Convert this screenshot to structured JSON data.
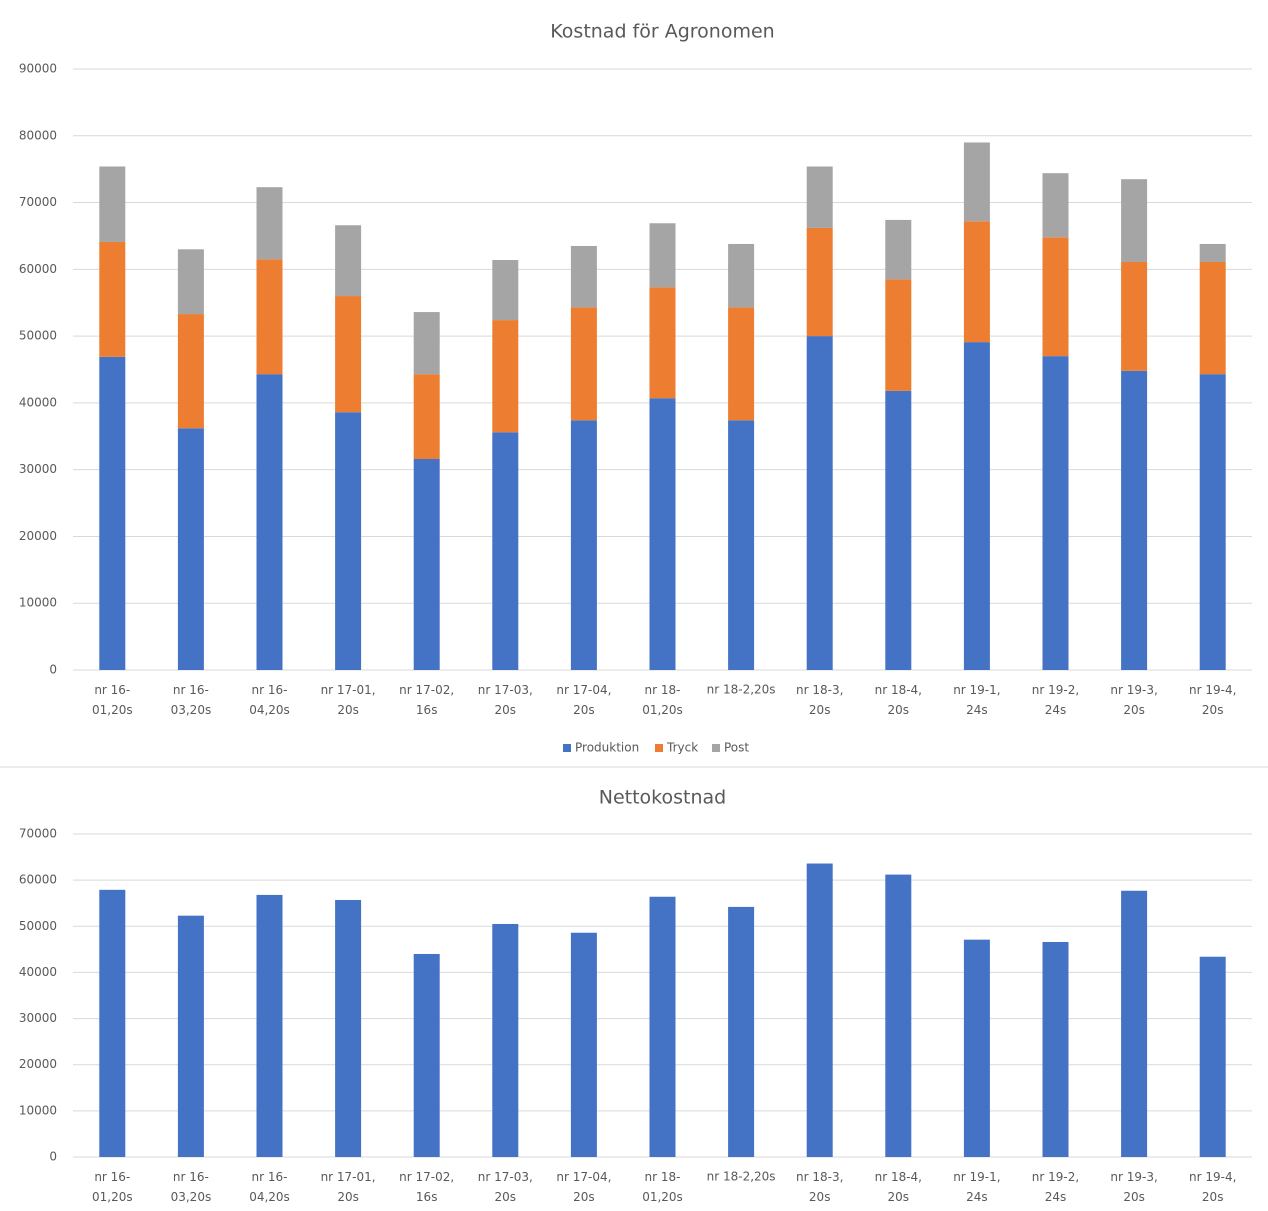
{
  "chart_data": [
    {
      "type": "stacked_bar",
      "title": "Kostnad för Agronomen",
      "categories": [
        "nr 16-\n01,20s",
        "nr 16-\n03,20s",
        "nr 16-\n04,20s",
        "nr 17-01,\n20s",
        "nr 17-02,\n16s",
        "nr 17-03,\n20s",
        "nr 17-04,\n20s",
        "nr 18-\n01,20s",
        "nr 18-2,20s",
        "nr 18-3,\n20s",
        "nr 18-4,\n20s",
        "nr 19-1,\n24s",
        "nr 19-2,\n24s",
        "nr 19-3,\n20s",
        "nr 19-4,\n20s"
      ],
      "series": [
        {
          "name": "Produktion",
          "color": "#4472c4",
          "values": [
            46900,
            36200,
            44300,
            38600,
            31600,
            35600,
            37400,
            40700,
            37400,
            50000,
            41800,
            49100,
            47000,
            44800,
            44300
          ]
        },
        {
          "name": "Tryck",
          "color": "#ed7d31",
          "values": [
            17200,
            17100,
            17200,
            17400,
            12700,
            16800,
            16900,
            16600,
            16900,
            16200,
            16700,
            18100,
            17800,
            16300,
            16800
          ]
        },
        {
          "name": "Post",
          "color": "#a5a5a5",
          "values": [
            11300,
            9700,
            10800,
            10600,
            9300,
            9000,
            9200,
            9600,
            9500,
            9200,
            8900,
            11800,
            9600,
            12400,
            2700
          ]
        }
      ],
      "ylim": [
        0,
        90000
      ],
      "yticks": [
        0,
        10000,
        20000,
        30000,
        40000,
        50000,
        60000,
        70000,
        80000,
        90000
      ],
      "grid": true,
      "legend": "bottom"
    },
    {
      "type": "bar",
      "title": "Nettokostnad",
      "categories": [
        "nr 16-\n01,20s",
        "nr 16-\n03,20s",
        "nr 16-\n04,20s",
        "nr 17-01,\n20s",
        "nr 17-02,\n16s",
        "nr 17-03,\n20s",
        "nr 17-04,\n20s",
        "nr 18-\n01,20s",
        "nr 18-2,20s",
        "nr 18-3,\n20s",
        "nr 18-4,\n20s",
        "nr 19-1,\n24s",
        "nr 19-2,\n24s",
        "nr 19-3,\n20s",
        "nr 19-4,\n20s"
      ],
      "values": [
        57900,
        52300,
        56800,
        55700,
        44000,
        50500,
        48600,
        56400,
        54200,
        63600,
        61200,
        47100,
        46600,
        57700,
        43400
      ],
      "color": "#4472c4",
      "ylim": [
        0,
        70000
      ],
      "yticks": [
        0,
        10000,
        20000,
        30000,
        40000,
        50000,
        60000,
        70000
      ],
      "grid": true
    }
  ]
}
